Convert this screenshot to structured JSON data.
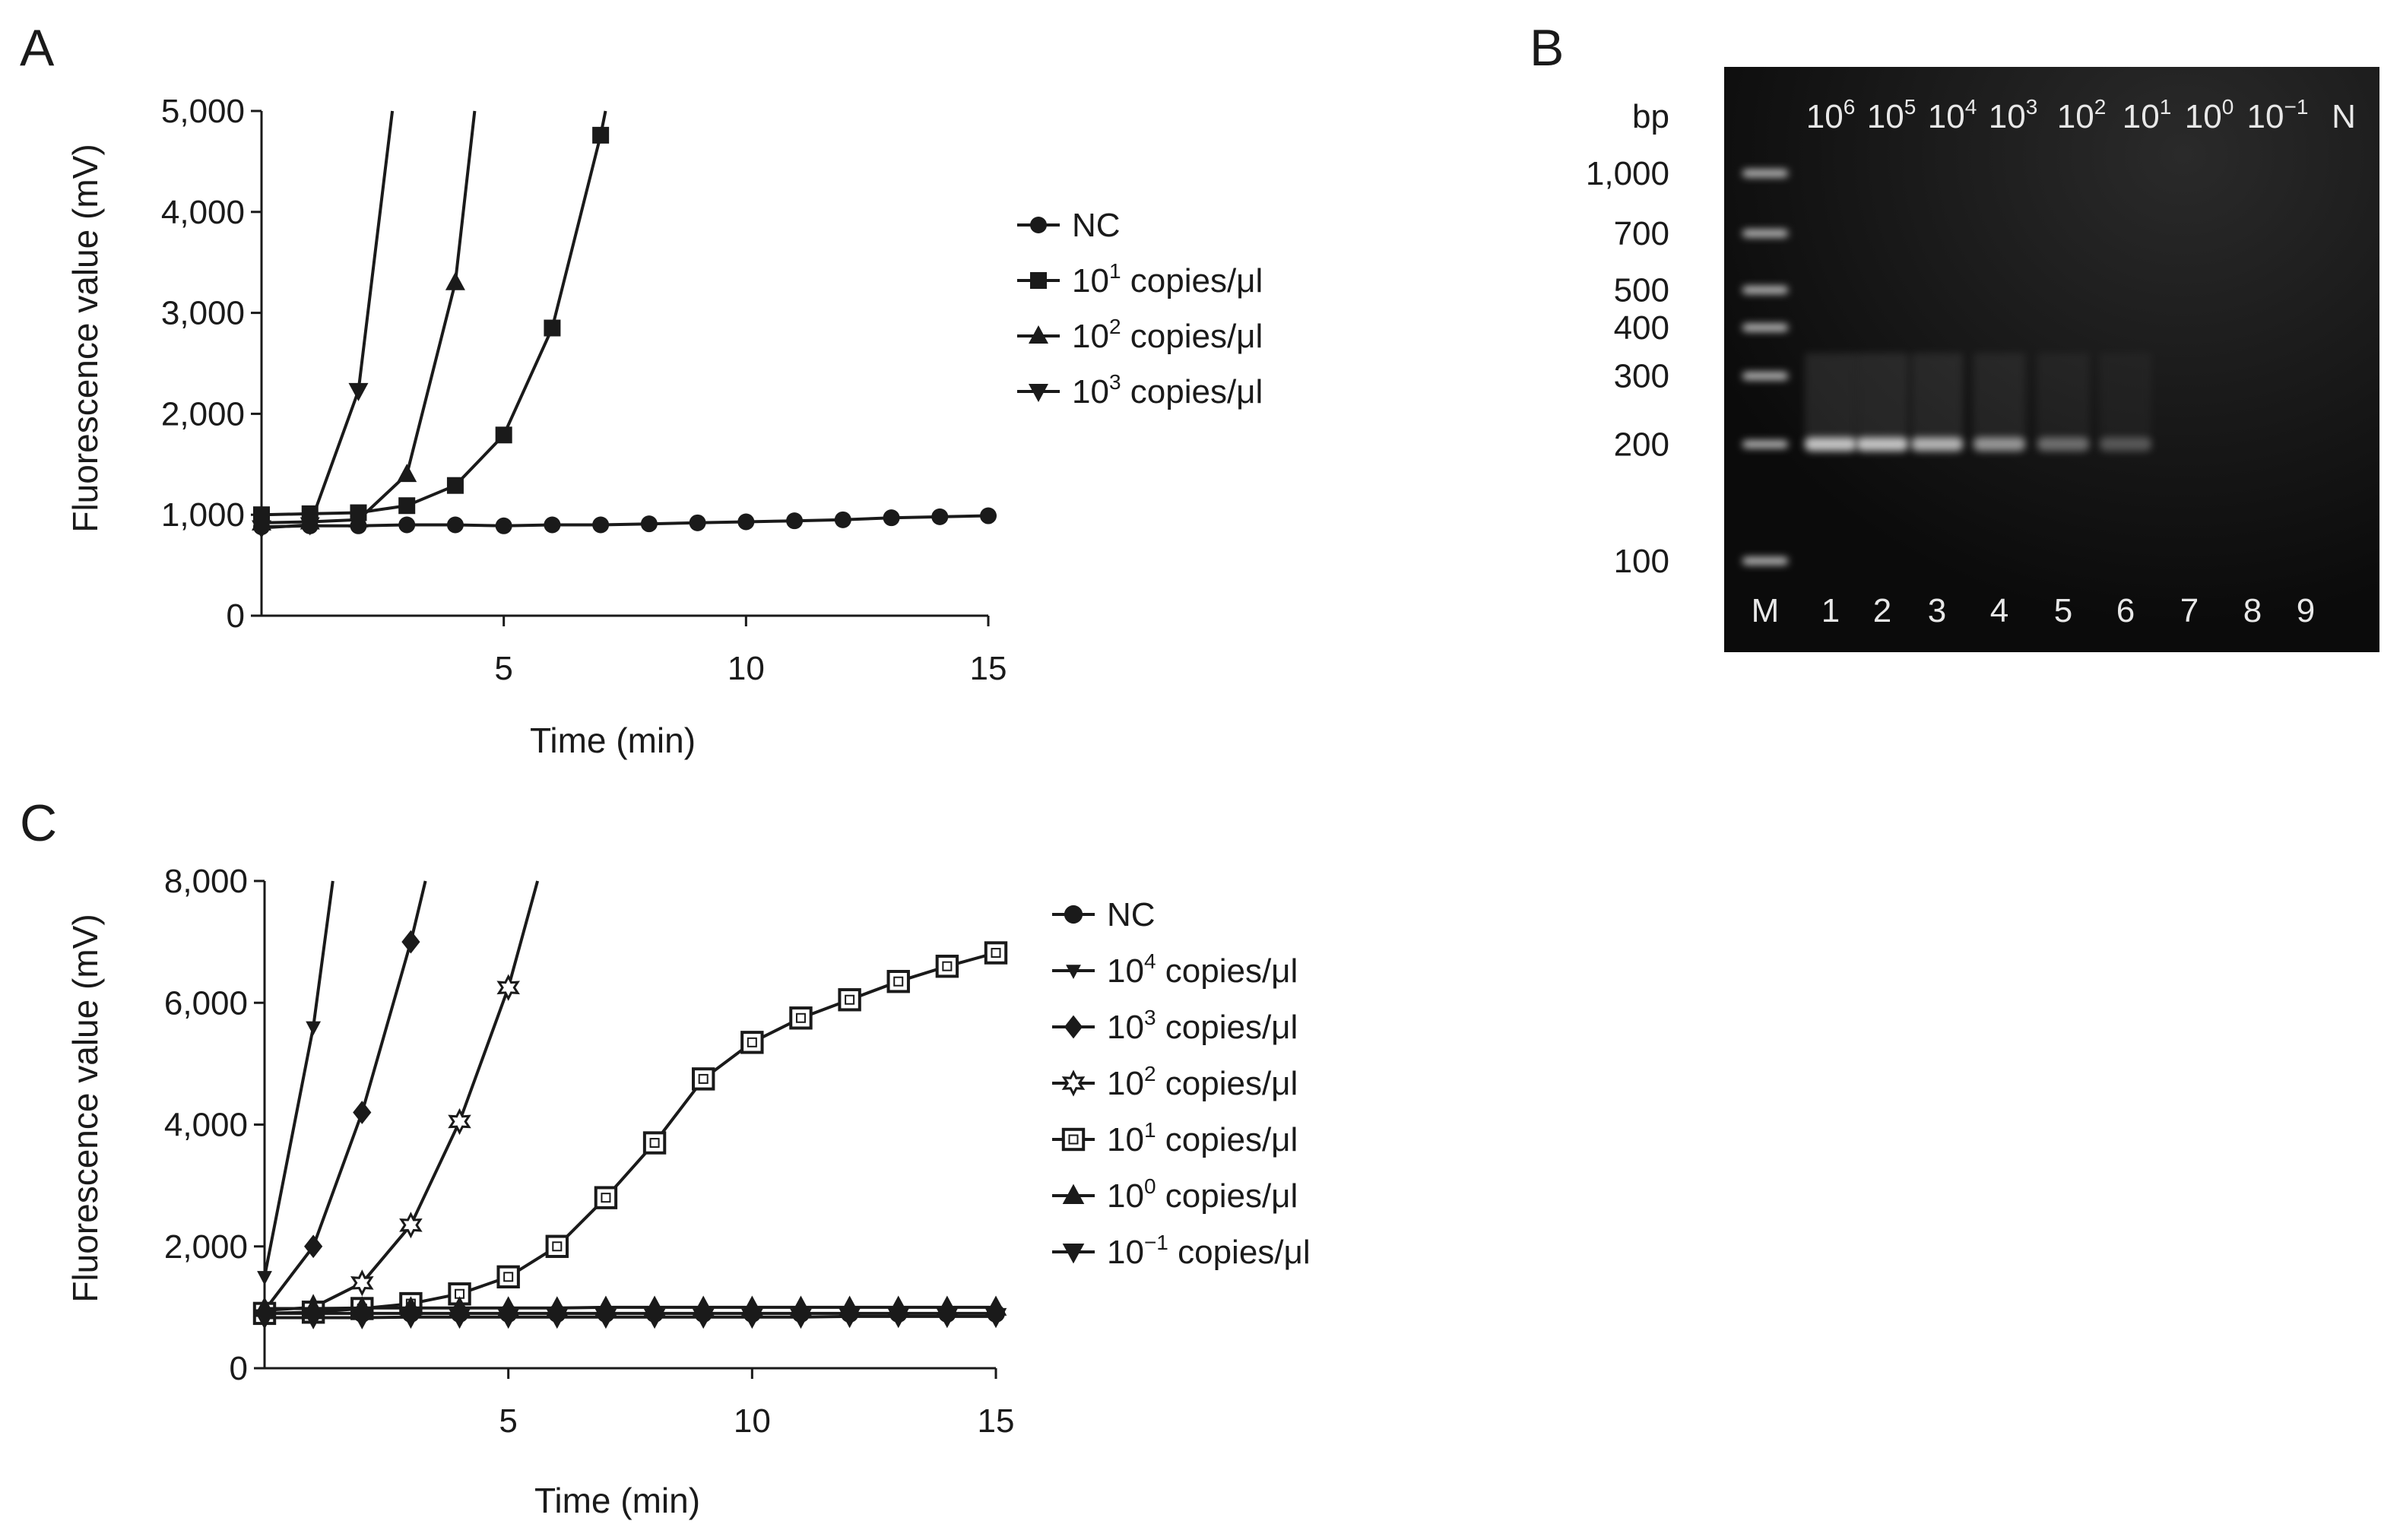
{
  "panels": {
    "a": "A",
    "b": "B",
    "c": "C"
  },
  "colors": {
    "line": "#1a1a1a",
    "gel_bg": "#0b0b0b",
    "gel_band": "#d8d8d8",
    "gel_text": "#e8e8e8"
  },
  "chart_data": [
    {
      "id": "A",
      "type": "line",
      "title": "",
      "xlabel": "Time (min)",
      "ylabel": "Fluorescence value (mV)",
      "xlim": [
        0,
        15
      ],
      "ylim": [
        0,
        5000
      ],
      "xticks": [
        5,
        10,
        15
      ],
      "yticks": [
        0,
        1000,
        2000,
        3000,
        4000,
        5000
      ],
      "xtick_labels": [
        "5",
        "10",
        "15"
      ],
      "ytick_labels": [
        "0",
        "1,000",
        "2,000",
        "3,000",
        "4,000",
        "5,000"
      ],
      "legend_position": "right",
      "series": [
        {
          "name": "NC",
          "base": "",
          "exp": "",
          "unit": "",
          "marker": "circle",
          "x": [
            0,
            1,
            2,
            3,
            4,
            5,
            6,
            7,
            8,
            9,
            10,
            11,
            12,
            13,
            14,
            15
          ],
          "y": [
            880,
            890,
            890,
            900,
            900,
            890,
            900,
            900,
            910,
            920,
            930,
            940,
            950,
            970,
            980,
            990
          ]
        },
        {
          "name": "10^1 copies/μl",
          "base": "10",
          "exp": "1",
          "unit": " copies/μl",
          "marker": "square",
          "x": [
            0,
            1,
            2,
            3,
            4,
            5,
            6,
            7
          ],
          "y": [
            1000,
            1010,
            1020,
            1090,
            1290,
            1790,
            2850,
            4760
          ],
          "tail": [
            7.1,
            5000
          ]
        },
        {
          "name": "10^2 copies/μl",
          "base": "10",
          "exp": "2",
          "unit": " copies/μl",
          "marker": "triangle-up",
          "x": [
            0,
            1,
            2,
            3,
            4
          ],
          "y": [
            920,
            930,
            950,
            1400,
            3300
          ],
          "tail": [
            4.4,
            5000
          ]
        },
        {
          "name": "10^3 copies/μl",
          "base": "10",
          "exp": "3",
          "unit": " copies/μl",
          "marker": "triangle-down",
          "x": [
            0,
            1,
            2
          ],
          "y": [
            870,
            900,
            2230
          ],
          "tail": [
            2.7,
            5000
          ]
        }
      ]
    },
    {
      "id": "C",
      "type": "line",
      "title": "",
      "xlabel": "Time (min)",
      "ylabel": "Fluorescence value (mV)",
      "xlim": [
        0,
        15
      ],
      "ylim": [
        0,
        8000
      ],
      "xticks": [
        5,
        10,
        15
      ],
      "yticks": [
        0,
        2000,
        4000,
        6000,
        8000
      ],
      "xtick_labels": [
        "5",
        "10",
        "15"
      ],
      "ytick_labels": [
        "0",
        "2,000",
        "4,000",
        "6,000",
        "8,000"
      ],
      "legend_position": "right",
      "series": [
        {
          "name": "NC",
          "base": "NC",
          "exp": "",
          "unit": "",
          "marker": "circle",
          "x": [
            0,
            1,
            2,
            3,
            4,
            5,
            6,
            7,
            8,
            9,
            10,
            11,
            12,
            13,
            14,
            15
          ],
          "y": [
            900,
            900,
            900,
            900,
            900,
            900,
            900,
            900,
            900,
            900,
            900,
            900,
            900,
            900,
            900,
            900
          ]
        },
        {
          "name": "10^4 copies/μl",
          "base": "10",
          "exp": "4",
          "unit": " copies/μl",
          "marker": "triangle-down-small",
          "x": [
            0,
            1
          ],
          "y": [
            1500,
            5600
          ],
          "tail": [
            1.4,
            8000
          ]
        },
        {
          "name": "10^3 copies/μl",
          "base": "10",
          "exp": "3",
          "unit": " copies/μl",
          "marker": "diamond",
          "x": [
            0,
            1,
            2,
            3
          ],
          "y": [
            950,
            2000,
            4200,
            7000
          ],
          "tail": [
            3.3,
            8000
          ]
        },
        {
          "name": "10^2 copies/μl",
          "base": "10",
          "exp": "2",
          "unit": " copies/μl",
          "marker": "star",
          "x": [
            0,
            1,
            2,
            3,
            4,
            5
          ],
          "y": [
            950,
            1000,
            1400,
            2350,
            4050,
            6250
          ],
          "tail": [
            5.6,
            8000
          ]
        },
        {
          "name": "10^1 copies/μl",
          "base": "10",
          "exp": "1",
          "unit": " copies/μl",
          "marker": "square-open",
          "x": [
            0,
            1,
            2,
            3,
            4,
            5,
            6,
            7,
            8,
            9,
            10,
            11,
            12,
            13,
            14,
            15
          ],
          "y": [
            900,
            920,
            980,
            1060,
            1220,
            1500,
            2000,
            2800,
            3700,
            4750,
            5350,
            5750,
            6050,
            6350,
            6600,
            6820
          ]
        },
        {
          "name": "10^0 copies/μl",
          "base": "10",
          "exp": "0",
          "unit": " copies/μl",
          "marker": "triangle-up",
          "x": [
            0,
            1,
            2,
            3,
            4,
            5,
            6,
            7,
            8,
            9,
            10,
            11,
            12,
            13,
            14,
            15
          ],
          "y": [
            980,
            980,
            990,
            990,
            990,
            990,
            990,
            1000,
            1000,
            1000,
            1000,
            1000,
            1000,
            1000,
            1000,
            1000
          ]
        },
        {
          "name": "10^-1 copies/μl",
          "base": "10",
          "exp": "−1",
          "unit": " copies/μl",
          "marker": "triangle-down",
          "x": [
            0,
            1,
            2,
            3,
            4,
            5,
            6,
            7,
            8,
            9,
            10,
            11,
            12,
            13,
            14,
            15
          ],
          "y": [
            830,
            830,
            830,
            840,
            840,
            840,
            840,
            840,
            840,
            840,
            840,
            840,
            850,
            850,
            850,
            850
          ]
        }
      ]
    }
  ],
  "gel": {
    "bp_header": "bp",
    "size_labels": [
      "1,000",
      "700",
      "500",
      "400",
      "300",
      "200",
      "100"
    ],
    "size_values": [
      1000,
      700,
      500,
      400,
      300,
      200,
      100
    ],
    "concentrations": [
      {
        "base": "10",
        "exp": "6"
      },
      {
        "base": "10",
        "exp": "5"
      },
      {
        "base": "10",
        "exp": "4"
      },
      {
        "base": "10",
        "exp": "3"
      },
      {
        "base": "10",
        "exp": "2"
      },
      {
        "base": "10",
        "exp": "1"
      },
      {
        "base": "10",
        "exp": "0"
      },
      {
        "base": "10",
        "exp": "-1"
      },
      {
        "base": "N",
        "exp": ""
      }
    ],
    "lanes": [
      "M",
      "1",
      "2",
      "3",
      "4",
      "5",
      "6",
      "7",
      "8",
      "9"
    ],
    "band_size_bp": 200,
    "band_intensity": [
      0.85,
      0.85,
      0.8,
      0.7,
      0.55,
      0.45,
      0,
      0,
      0
    ]
  }
}
